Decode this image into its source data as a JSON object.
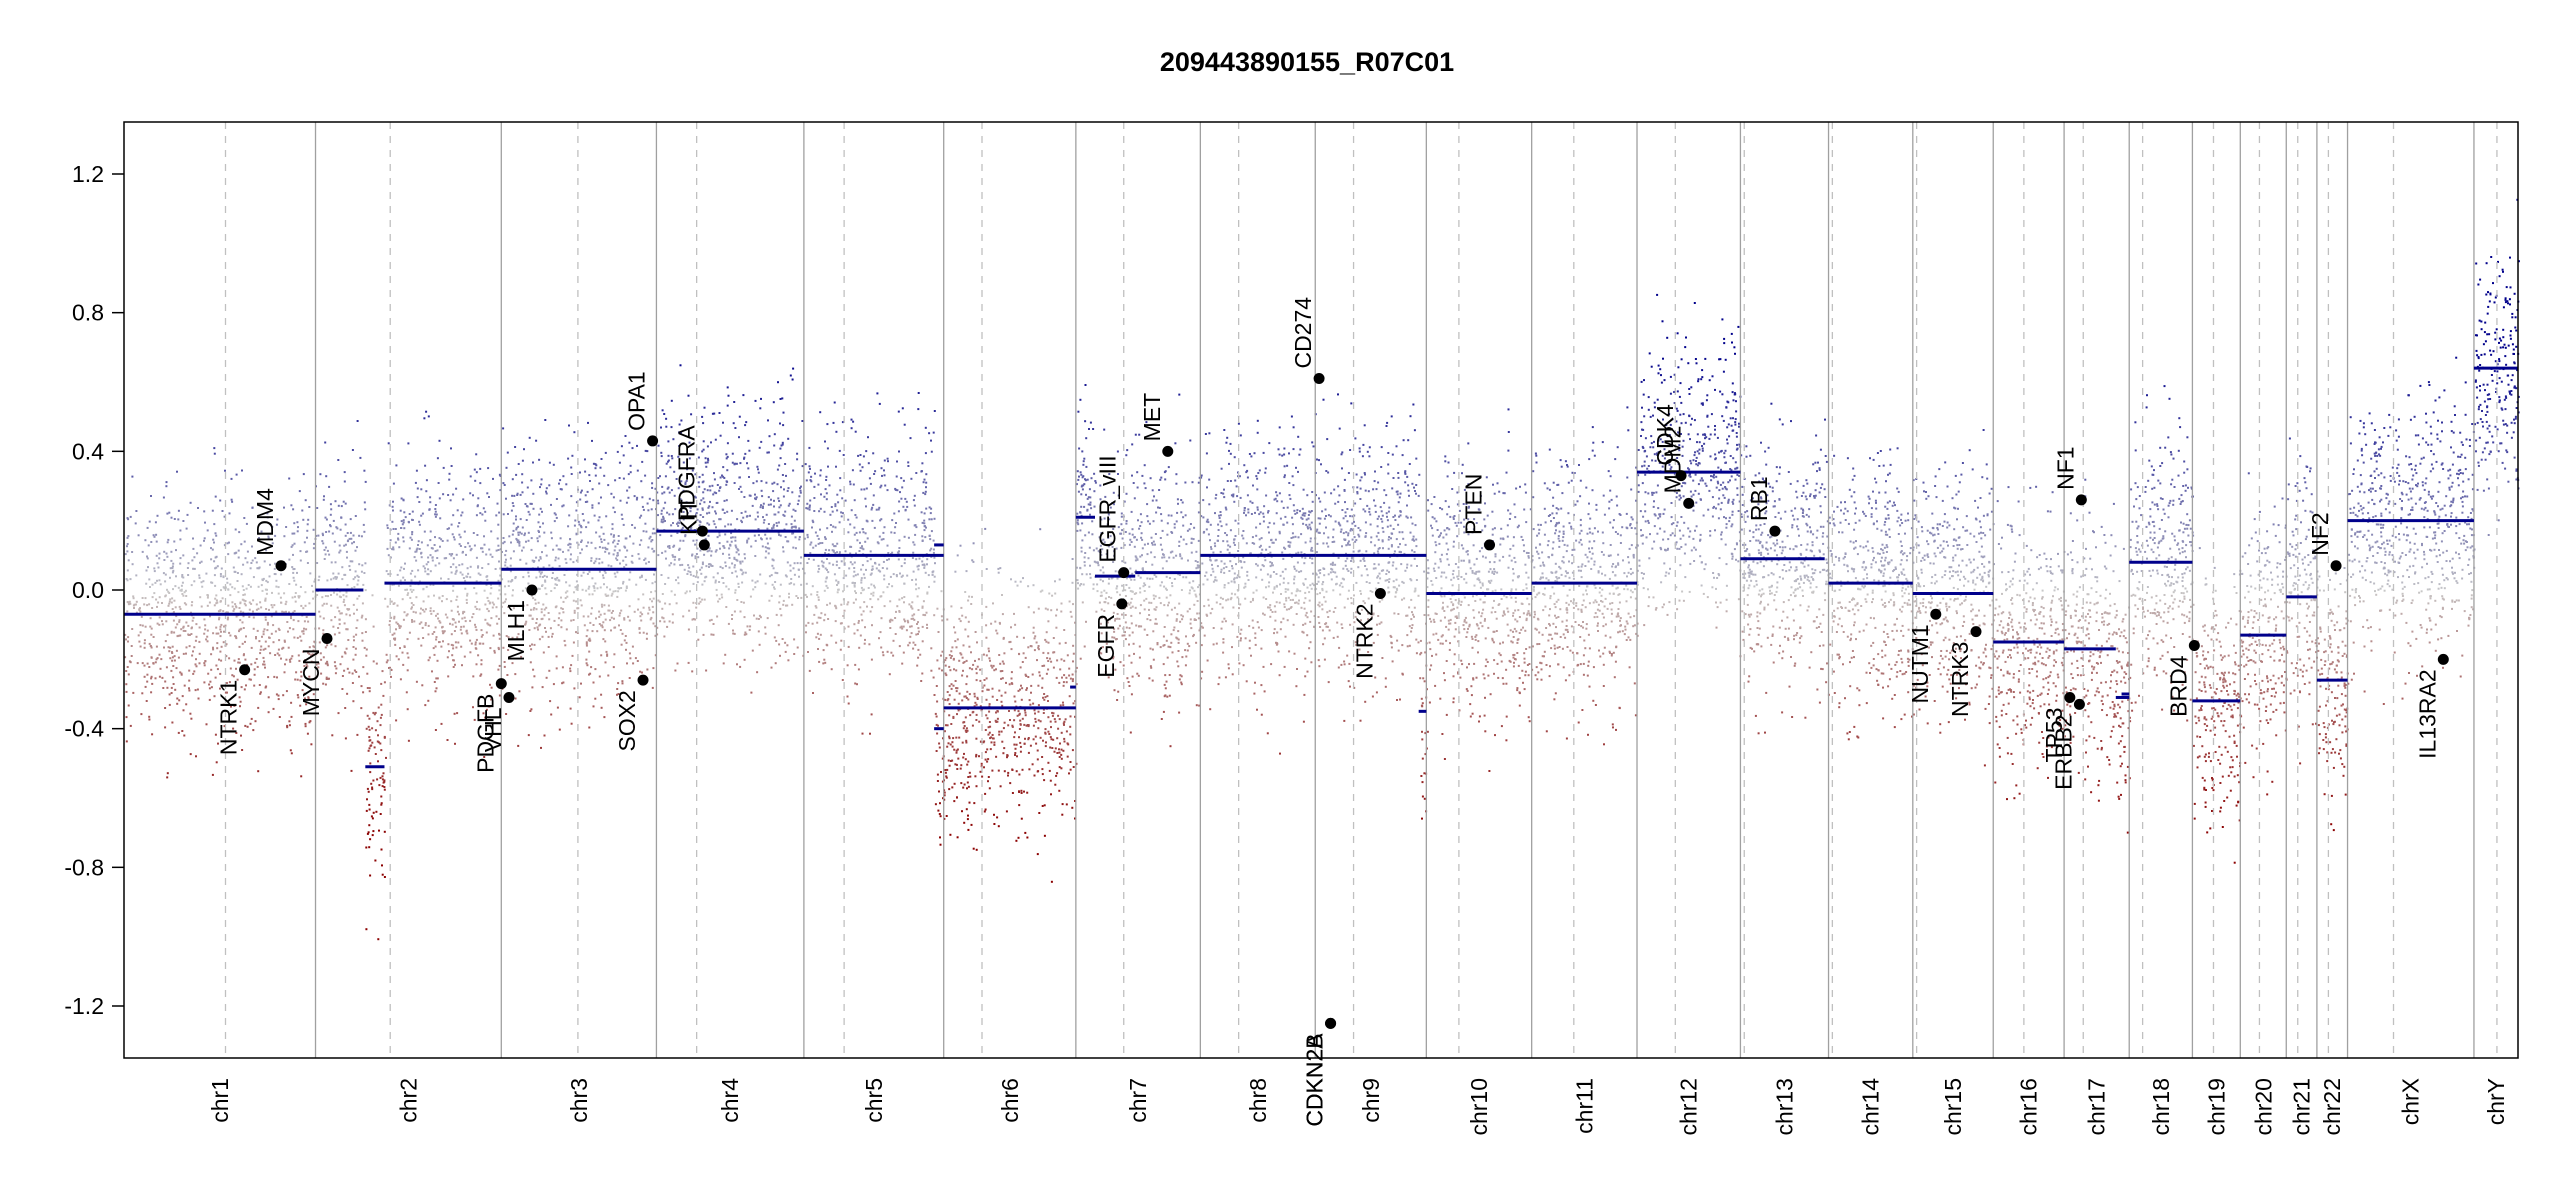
{
  "chart_data": {
    "type": "scatter",
    "title": "209443890155_R07C01",
    "xlabel": "",
    "ylabel": "",
    "ylim": [
      -1.35,
      1.35
    ],
    "yticks": [
      -1.2,
      -0.8,
      -0.4,
      0.0,
      0.4,
      0.8,
      1.2
    ],
    "ytick_labels": [
      "-1.2",
      "-0.8",
      "-0.4",
      "0.0",
      "0.4",
      "0.8",
      "1.2"
    ],
    "colors": {
      "gain": "#00008b",
      "loss": "#8b0000",
      "neutral": "#c8c8c8",
      "segment": "#00008b",
      "gene_point": "#000000",
      "boundary": "#a0a0a0",
      "centromere": "#c0c0c0"
    },
    "chromosomes": [
      {
        "name": "chr1",
        "start": 0.0,
        "end": 10.0,
        "centromere": 5.3
      },
      {
        "name": "chr2",
        "start": 10.0,
        "end": 19.7,
        "centromere": 13.9
      },
      {
        "name": "chr3",
        "start": 19.7,
        "end": 27.8,
        "centromere": 23.7
      },
      {
        "name": "chr4",
        "start": 27.8,
        "end": 35.5,
        "centromere": 29.9
      },
      {
        "name": "chr5",
        "start": 35.5,
        "end": 42.8,
        "centromere": 37.6
      },
      {
        "name": "chr6",
        "start": 42.8,
        "end": 49.7,
        "centromere": 44.8
      },
      {
        "name": "chr7",
        "start": 49.7,
        "end": 56.2,
        "centromere": 52.2
      },
      {
        "name": "chr8",
        "start": 56.2,
        "end": 62.2,
        "centromere": 58.2
      },
      {
        "name": "chr9",
        "start": 62.2,
        "end": 68.0,
        "centromere": 64.2
      },
      {
        "name": "chr10",
        "start": 68.0,
        "end": 73.5,
        "centromere": 69.7
      },
      {
        "name": "chr11",
        "start": 73.5,
        "end": 79.0,
        "centromere": 75.7
      },
      {
        "name": "chr12",
        "start": 79.0,
        "end": 84.4,
        "centromere": 81.0
      },
      {
        "name": "chr13",
        "start": 84.4,
        "end": 89.0,
        "centromere": 84.6
      },
      {
        "name": "chr14",
        "start": 89.0,
        "end": 93.4,
        "centromere": 89.2
      },
      {
        "name": "chr15",
        "start": 93.4,
        "end": 97.6,
        "centromere": 93.6
      },
      {
        "name": "chr16",
        "start": 97.6,
        "end": 101.3,
        "centromere": 99.2
      },
      {
        "name": "chr17",
        "start": 101.3,
        "end": 104.7,
        "centromere": 102.3
      },
      {
        "name": "chr18",
        "start": 104.7,
        "end": 108.0,
        "centromere": 105.4
      },
      {
        "name": "chr19",
        "start": 108.0,
        "end": 110.5,
        "centromere": 109.1
      },
      {
        "name": "chr20",
        "start": 110.5,
        "end": 112.9,
        "centromere": 111.5
      },
      {
        "name": "chr21",
        "start": 112.9,
        "end": 114.5,
        "centromere": 113.5
      },
      {
        "name": "chr22",
        "start": 114.5,
        "end": 116.1,
        "centromere": 115.1
      },
      {
        "name": "chrX",
        "start": 116.1,
        "end": 122.7,
        "centromere": 118.5
      },
      {
        "name": "chrY",
        "start": 122.7,
        "end": 125.0,
        "centromere": 123.9
      }
    ],
    "segments": [
      {
        "x0": 0.0,
        "x1": 10.0,
        "y": -0.07
      },
      {
        "x0": 10.0,
        "x1": 12.5,
        "y": 0.0
      },
      {
        "x0": 12.6,
        "x1": 13.6,
        "y": -0.51
      },
      {
        "x0": 13.6,
        "x1": 19.7,
        "y": 0.02
      },
      {
        "x0": 19.7,
        "x1": 27.8,
        "y": 0.06
      },
      {
        "x0": 27.8,
        "x1": 35.5,
        "y": 0.17
      },
      {
        "x0": 35.5,
        "x1": 42.8,
        "y": 0.1
      },
      {
        "x0": 42.8,
        "x1": 49.7,
        "y": -0.34
      },
      {
        "x0": 49.7,
        "x1": 50.7,
        "y": 0.21
      },
      {
        "x0": 50.7,
        "x1": 52.8,
        "y": 0.04
      },
      {
        "x0": 52.8,
        "x1": 56.2,
        "y": 0.05
      },
      {
        "x0": 56.2,
        "x1": 62.2,
        "y": 0.1
      },
      {
        "x0": 62.2,
        "x1": 68.0,
        "y": 0.1
      },
      {
        "x0": 68.0,
        "x1": 73.5,
        "y": -0.01
      },
      {
        "x0": 73.5,
        "x1": 79.0,
        "y": 0.02
      },
      {
        "x0": 79.0,
        "x1": 84.4,
        "y": 0.34
      },
      {
        "x0": 84.4,
        "x1": 88.8,
        "y": 0.09
      },
      {
        "x0": 89.0,
        "x1": 93.4,
        "y": 0.02
      },
      {
        "x0": 93.4,
        "x1": 97.6,
        "y": -0.01
      },
      {
        "x0": 97.6,
        "x1": 101.3,
        "y": -0.15
      },
      {
        "x0": 101.3,
        "x1": 104.0,
        "y": -0.17
      },
      {
        "x0": 104.0,
        "x1": 104.7,
        "y": -0.31
      },
      {
        "x0": 104.7,
        "x1": 108.0,
        "y": 0.08
      },
      {
        "x0": 108.0,
        "x1": 110.5,
        "y": -0.32
      },
      {
        "x0": 110.5,
        "x1": 112.9,
        "y": -0.13
      },
      {
        "x0": 112.9,
        "x1": 114.5,
        "y": -0.02
      },
      {
        "x0": 114.5,
        "x1": 116.1,
        "y": -0.26
      },
      {
        "x0": 116.1,
        "x1": 122.7,
        "y": 0.2
      },
      {
        "x0": 122.7,
        "x1": 125.0,
        "y": 0.64
      },
      {
        "x0": 42.3,
        "x1": 42.8,
        "y": -0.4
      },
      {
        "x0": 49.4,
        "x1": 49.7,
        "y": -0.28
      },
      {
        "x0": 67.6,
        "x1": 68.0,
        "y": -0.35
      },
      {
        "x0": 42.3,
        "x1": 42.8,
        "y": 0.13
      },
      {
        "x0": 104.3,
        "x1": 104.7,
        "y": -0.3
      }
    ],
    "genes": [
      {
        "name": "NTRK1",
        "x": 6.3,
        "y": -0.23
      },
      {
        "name": "MDM4",
        "x": 8.2,
        "y": 0.07
      },
      {
        "name": "MYCN",
        "x": 10.6,
        "y": -0.14
      },
      {
        "name": "PDGFB",
        "x": 19.7,
        "y": -0.27
      },
      {
        "name": "VHL",
        "x": 20.1,
        "y": -0.31
      },
      {
        "name": "MLH1",
        "x": 21.3,
        "y": 0.0
      },
      {
        "name": "SOX2",
        "x": 27.1,
        "y": -0.26
      },
      {
        "name": "OPA1",
        "x": 27.6,
        "y": 0.43
      },
      {
        "name": "PDGFRA",
        "x": 30.2,
        "y": 0.17
      },
      {
        "name": "KIT",
        "x": 30.3,
        "y": 0.13
      },
      {
        "name": "EGFR",
        "x": 52.1,
        "y": -0.04
      },
      {
        "name": "EGFR_vIII",
        "x": 52.2,
        "y": 0.05
      },
      {
        "name": "MET",
        "x": 54.5,
        "y": 0.4
      },
      {
        "name": "CD274",
        "x": 62.4,
        "y": 0.61
      },
      {
        "name": "CDKN2A",
        "x": 63.0,
        "y": -1.25
      },
      {
        "name": "CDKN2B",
        "x": 63.0,
        "y": -1.25
      },
      {
        "name": "NTRK2",
        "x": 65.6,
        "y": -0.01
      },
      {
        "name": "PTEN",
        "x": 71.3,
        "y": 0.13
      },
      {
        "name": "CDK4",
        "x": 81.3,
        "y": 0.33
      },
      {
        "name": "MDM2",
        "x": 81.7,
        "y": 0.25
      },
      {
        "name": "RB1",
        "x": 86.2,
        "y": 0.17
      },
      {
        "name": "NUTM1",
        "x": 94.6,
        "y": -0.07
      },
      {
        "name": "NTRK3",
        "x": 96.7,
        "y": -0.12
      },
      {
        "name": "TP53",
        "x": 101.6,
        "y": -0.31
      },
      {
        "name": "ERBB2",
        "x": 102.1,
        "y": -0.33
      },
      {
        "name": "NF1",
        "x": 102.2,
        "y": 0.26
      },
      {
        "name": "BRD4",
        "x": 108.1,
        "y": -0.16
      },
      {
        "name": "NF2",
        "x": 115.5,
        "y": 0.07
      },
      {
        "name": "IL13RA2",
        "x": 121.1,
        "y": -0.2
      }
    ]
  }
}
